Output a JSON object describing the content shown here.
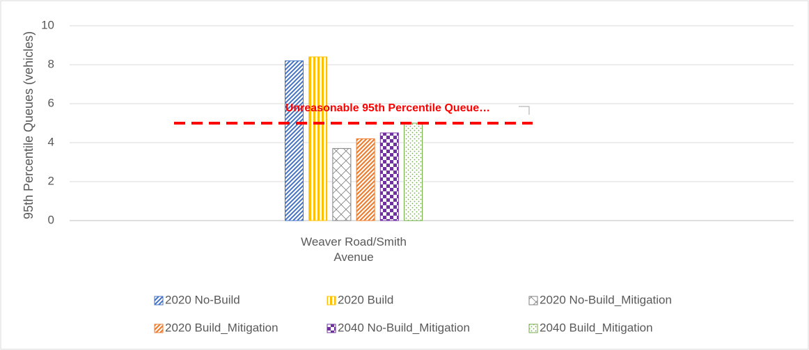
{
  "chart_data": {
    "type": "bar",
    "y_label": "95th Percentile Queues (vehicles)",
    "categories": [
      "Weaver Road/Smith Avenue"
    ],
    "series": [
      {
        "name": "2020 No-Build",
        "color": "#4472c4",
        "values": [
          8.2
        ]
      },
      {
        "name": "2020 Build",
        "color": "#ffc000",
        "values": [
          8.4
        ]
      },
      {
        "name": "2020 No-Build_Mitigation",
        "color": "#7f7f7f",
        "values": [
          3.7
        ]
      },
      {
        "name": "2020 Build_Mitigation",
        "color": "#ed7d31",
        "values": [
          4.2
        ]
      },
      {
        "name": "2040 No-Build_Mitigation",
        "color": "#7030a0",
        "values": [
          4.5
        ]
      },
      {
        "name": "2040 Build_Mitigation",
        "color": "#70ad47",
        "values": [
          5.0
        ]
      }
    ],
    "reference_line": {
      "value": 5,
      "label": "Unreasonable 95th Percentile Queue…",
      "color": "#ff0000"
    },
    "ylim": [
      0,
      10
    ],
    "yticks": [
      0,
      2,
      4,
      6,
      8,
      10
    ],
    "grid": true,
    "legend": "bottom"
  }
}
